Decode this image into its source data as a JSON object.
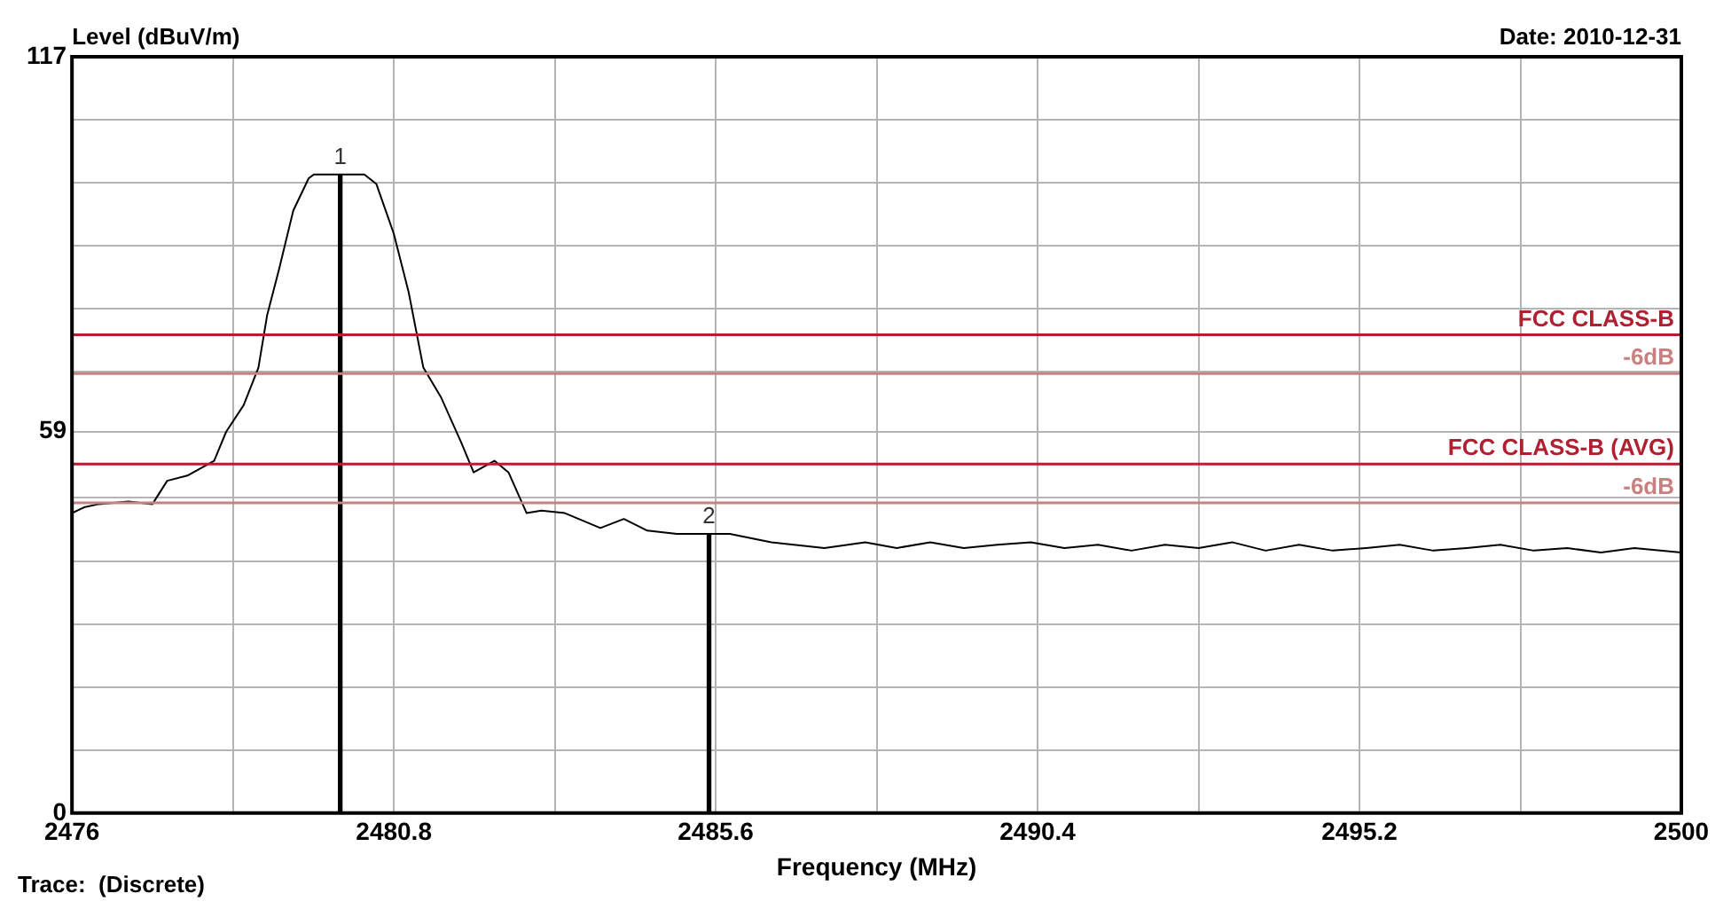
{
  "chart_data": {
    "type": "line",
    "xlabel": "Frequency (MHz)",
    "ylabel": "Level (dBuV/m)",
    "xlim": [
      2476,
      2500
    ],
    "ylim": [
      0,
      117
    ],
    "xticks": [
      2476,
      {
        "value": 2478.4,
        "label": null
      },
      2480.8,
      {
        "value": 2483.2,
        "label": null
      },
      2485.6,
      {
        "value": 2488,
        "label": null
      },
      2490.4,
      {
        "value": 2492.8,
        "label": null
      },
      2495.2,
      {
        "value": 2497.6,
        "label": null
      },
      2500
    ],
    "yticks": [
      0,
      {
        "value": 9.75,
        "label": null
      },
      {
        "value": 19.5,
        "label": null
      },
      {
        "value": 29.25,
        "label": null
      },
      {
        "value": 39,
        "label": null
      },
      {
        "value": 48.75,
        "label": null
      },
      59,
      {
        "value": 68.25,
        "label": null
      },
      {
        "value": 78,
        "label": null
      },
      {
        "value": 87.75,
        "label": null
      },
      {
        "value": 97.5,
        "label": null
      },
      {
        "value": 107.25,
        "label": null
      },
      117
    ],
    "grid": true,
    "legend": false,
    "marker": "none",
    "line_style": "solid",
    "series": [
      {
        "color": "#000000",
        "x": [
          2476.0,
          2476.18,
          2476.4,
          2476.84,
          2477.2,
          2477.42,
          2477.72,
          2478.12,
          2478.3,
          2478.56,
          2478.78,
          2478.91,
          2479.09,
          2479.3,
          2479.53,
          2479.61,
          2480.36,
          2480.54,
          2480.8,
          2481.02,
          2481.24,
          2481.5,
          2481.81,
          2481.99,
          2482.3,
          2482.51,
          2482.78,
          2483.0,
          2483.35,
          2483.88,
          2484.23,
          2484.58,
          2485.02,
          2485.48,
          2485.81,
          2486.43,
          2487.22,
          2487.83,
          2488.3,
          2488.8,
          2489.3,
          2489.8,
          2490.3,
          2490.8,
          2491.3,
          2491.8,
          2492.3,
          2492.8,
          2493.3,
          2493.8,
          2494.3,
          2494.8,
          2495.3,
          2495.8,
          2496.3,
          2496.8,
          2497.3,
          2497.8,
          2498.3,
          2498.8,
          2499.3,
          2500.0
        ],
        "values": [
          46.4,
          47.3,
          47.8,
          48.2,
          47.8,
          51.4,
          52.2,
          54.5,
          59.0,
          63.1,
          68.9,
          77.0,
          84.2,
          93.2,
          98.2,
          98.8,
          98.8,
          97.3,
          89.6,
          80.6,
          68.9,
          64.4,
          57.2,
          52.7,
          54.5,
          52.7,
          46.4,
          46.8,
          46.4,
          44.1,
          45.5,
          43.7,
          43.2,
          43.2,
          43.2,
          41.9,
          41.0,
          41.9,
          41.0,
          41.9,
          41.0,
          41.5,
          41.9,
          41.0,
          41.5,
          40.6,
          41.5,
          41.0,
          41.9,
          40.6,
          41.5,
          40.6,
          41.0,
          41.5,
          40.6,
          41.0,
          41.5,
          40.6,
          41.0,
          40.3,
          41.0,
          40.3
        ]
      },
      {
        "type": "bar",
        "color": "#000000",
        "x": [
          2480,
          2485.5
        ],
        "values": [
          98.8,
          43.2
        ]
      }
    ],
    "ref_lines": [
      {
        "axis": "y",
        "value": 74,
        "label": "FCC CLASS-B",
        "color": "#b02030"
      },
      {
        "axis": "y",
        "value": 68,
        "label": "-6dB",
        "color": "#c88080"
      },
      {
        "axis": "y",
        "value": 54,
        "label": "FCC CLASS-B (AVG)",
        "color": "#b02030"
      },
      {
        "axis": "y",
        "value": 48,
        "label": "-6dB",
        "color": "#c88080"
      }
    ],
    "annotations": [
      {
        "text": "1",
        "x": 2480,
        "y": 98.8
      },
      {
        "text": "2",
        "x": 2485.5,
        "y": 43.2
      },
      "Date: 2010-12-31",
      "Trace:  (Discrete)"
    ]
  }
}
